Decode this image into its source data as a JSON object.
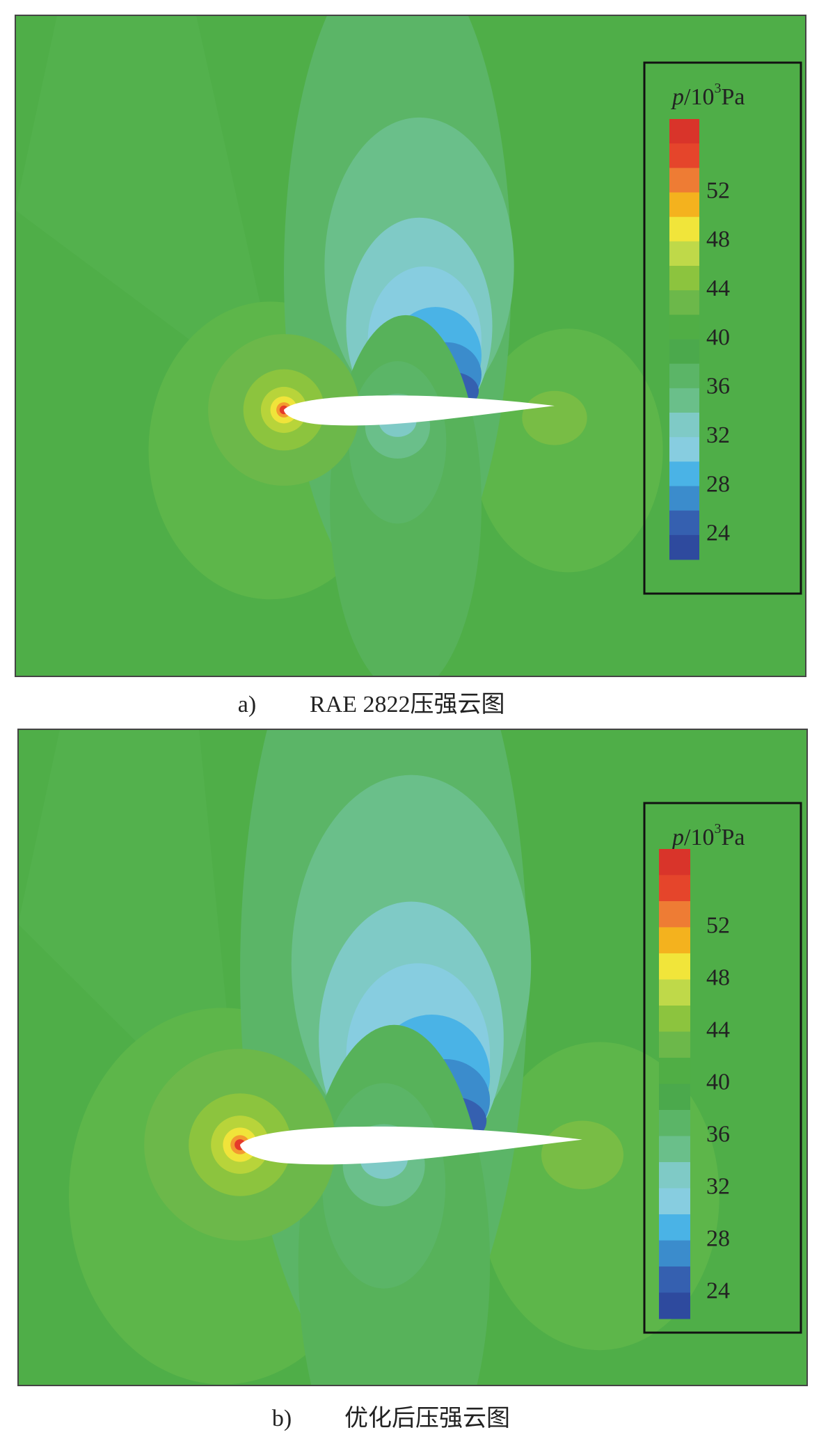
{
  "panels": [
    {
      "caption": {
        "label": "a)",
        "text": "RAE 2822压强云图"
      },
      "legend": {
        "symbol": "p",
        "unit": "/10",
        "exponent": "3",
        "unit_suffix": "Pa",
        "ticks": [
          52,
          48,
          44,
          40,
          36,
          32,
          28,
          24
        ]
      }
    },
    {
      "caption": {
        "label": "b)",
        "text": "优化后压强云图"
      },
      "legend": {
        "symbol": "p",
        "unit": "/10",
        "exponent": "3",
        "unit_suffix": "Pa",
        "ticks": [
          52,
          48,
          44,
          40,
          36,
          32,
          28,
          24
        ]
      }
    }
  ]
}
